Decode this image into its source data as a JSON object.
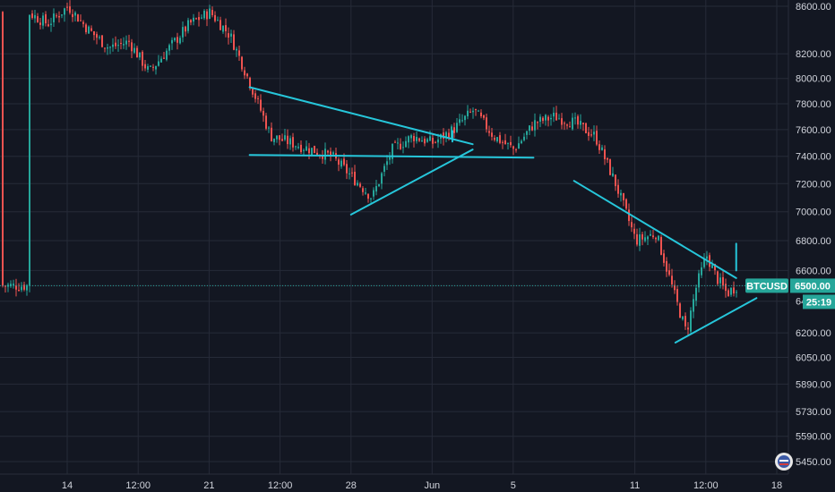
{
  "chart_data": {
    "type": "candlestick",
    "symbol": "BTCUSD",
    "last_price": 6500.0,
    "last_price_label": "6500.00",
    "countdown": "25:19",
    "price_scale": "log",
    "grid": true,
    "y_ticks": [
      "8600.00",
      "8200.00",
      "8000.00",
      "7800.00",
      "7600.00",
      "7400.00",
      "7200.00",
      "7000.00",
      "6800.00",
      "6600.00",
      "6500.00",
      "6400.00",
      "6200.00",
      "6050.00",
      "5890.00",
      "5730.00",
      "5590.00",
      "5450.00"
    ],
    "x_ticks": [
      "14",
      "12:00",
      "21",
      "12:00",
      "28",
      "Jun",
      "5",
      "11",
      "12:00",
      "18"
    ],
    "price_path": [
      {
        "x": "May 12",
        "y": 8550
      },
      {
        "x": "May 13",
        "y": 8450
      },
      {
        "x": "May 14",
        "y": 8600
      },
      {
        "x": "May 15",
        "y": 8400
      },
      {
        "x": "May 16",
        "y": 8250
      },
      {
        "x": "May 17",
        "y": 8300
      },
      {
        "x": "May 18",
        "y": 8050
      },
      {
        "x": "May 19",
        "y": 8250
      },
      {
        "x": "May 20",
        "y": 8450
      },
      {
        "x": "May 21",
        "y": 8550
      },
      {
        "x": "May 22",
        "y": 8350
      },
      {
        "x": "May 23",
        "y": 7950
      },
      {
        "x": "May 24",
        "y": 7550
      },
      {
        "x": "May 25",
        "y": 7500
      },
      {
        "x": "May 26",
        "y": 7450
      },
      {
        "x": "May 27",
        "y": 7400
      },
      {
        "x": "May 28",
        "y": 7250
      },
      {
        "x": "May 29",
        "y": 7100
      },
      {
        "x": "May 30",
        "y": 7450
      },
      {
        "x": "May 31",
        "y": 7550
      },
      {
        "x": "Jun 1",
        "y": 7500
      },
      {
        "x": "Jun 2",
        "y": 7600
      },
      {
        "x": "Jun 3",
        "y": 7750
      },
      {
        "x": "Jun 4",
        "y": 7550
      },
      {
        "x": "Jun 5",
        "y": 7450
      },
      {
        "x": "Jun 6",
        "y": 7650
      },
      {
        "x": "Jun 7",
        "y": 7700
      },
      {
        "x": "Jun 8",
        "y": 7650
      },
      {
        "x": "Jun 9",
        "y": 7550
      },
      {
        "x": "Jun 10",
        "y": 7200
      },
      {
        "x": "Jun 11",
        "y": 6800
      },
      {
        "x": "Jun 12",
        "y": 6850
      },
      {
        "x": "Jun 13",
        "y": 6400
      },
      {
        "x": "Jun 13 12:00",
        "y": 6200
      },
      {
        "x": "Jun 14",
        "y": 6500
      },
      {
        "x": "Jun 14 12:00",
        "y": 6700
      },
      {
        "x": "Jun 15",
        "y": 6550
      },
      {
        "x": "Jun 15 12:00",
        "y": 6450
      },
      {
        "x": "Jun 16",
        "y": 6500
      }
    ],
    "trendlines": [
      {
        "x1": "May 23",
        "y1": 7930,
        "x2": "Jun 3",
        "y2": 7490
      },
      {
        "x1": "May 23",
        "y1": 7410,
        "x2": "Jun 6",
        "y2": 7390
      },
      {
        "x1": "May 28",
        "y1": 6980,
        "x2": "Jun 3",
        "y2": 7450
      },
      {
        "x1": "Jun 2",
        "y1": 7510,
        "x2": "Jun 2",
        "y2": 7590
      },
      {
        "x1": "Jun 8",
        "y1": 7220,
        "x2": "Jun 16",
        "y2": 6550
      },
      {
        "x1": "Jun 13",
        "y1": 6140,
        "x2": "Jun 17",
        "y2": 6420
      },
      {
        "x1": "Jun 16",
        "y1": 6600,
        "x2": "Jun 16",
        "y2": 6780
      }
    ],
    "colors": {
      "background": "#131722",
      "up": "#26a69a",
      "down": "#ef5350",
      "trendline": "#26c6da",
      "badge": "#26a69a",
      "last_price_line": "#26a69a"
    }
  }
}
